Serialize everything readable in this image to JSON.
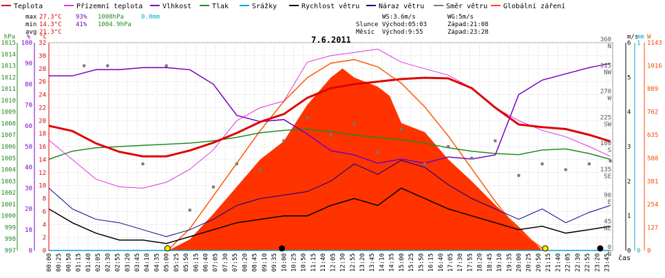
{
  "chart_data": {
    "type": "line",
    "title": "7.6.2011",
    "xlabel": "čas",
    "legend_placement": "top",
    "grid": true,
    "legend": [
      {
        "name": "Teplota",
        "color": "#e00000"
      },
      {
        "name": "Přízemní teplota",
        "color": "#dd33dd"
      },
      {
        "name": "Vlhkost",
        "color": "#7700bb"
      },
      {
        "name": "Tlak",
        "color": "#228822"
      },
      {
        "name": "Srážky",
        "color": "#00aacc"
      },
      {
        "name": "Rychlost větru",
        "color": "#000000"
      },
      {
        "name": "Náraz větru",
        "color": "#000088"
      },
      {
        "name": "Směr větru",
        "color": "#777777"
      },
      {
        "name": "Globální záření",
        "color": "#ff4400"
      }
    ],
    "stats": {
      "max": {
        "label": "max",
        "temp": "27.3°C",
        "hum": "93%",
        "press": "1008hPa",
        "rain": "0.0mm"
      },
      "min": {
        "label": "min",
        "temp": "14.3°C",
        "hum": "41%",
        "press": "1004.9hPa"
      },
      "avg": {
        "label": "avg",
        "temp": "21.3°C"
      }
    },
    "info": {
      "ws": "WS:3.6m/s",
      "wg": "WG:5m/s",
      "sun_label": "Slunce",
      "sun_rise": "Východ:05:03",
      "sun_set": "Západ:21:08",
      "moon_label": "Měsíc",
      "moon_rise": "Východ:9:55",
      "moon_set": "Západ:23:28"
    },
    "axes": {
      "hpa": {
        "unit": "hPa",
        "min": 997,
        "max": 1015,
        "ticks": [
          "997",
          "998",
          "999",
          "1000",
          "1001",
          "1002",
          "1003",
          "1004",
          "1005",
          "1006",
          "1007",
          "1008",
          "1009",
          "1010",
          "1011",
          "1012",
          "1013",
          "1014",
          "1015"
        ]
      },
      "pct": {
        "unit": "%",
        "min": 0,
        "max": 100,
        "ticks": [
          "0",
          "10",
          "20",
          "30",
          "40",
          "50",
          "60",
          "70",
          "80",
          "90",
          "100"
        ]
      },
      "temp": {
        "unit": "°C",
        "min": 0,
        "max": 32,
        "ticks": [
          "0",
          "2",
          "4",
          "6",
          "8",
          "10",
          "12",
          "14",
          "16",
          "18",
          "20",
          "22",
          "24",
          "26",
          "28",
          "30",
          "32"
        ]
      },
      "wind": {
        "unit": "m/s",
        "min": 0,
        "max": 6,
        "ticks": [
          "0",
          "1",
          "2",
          "3",
          "4",
          "5",
          "6"
        ]
      },
      "rain": {
        "unit": "mm",
        "min": 0,
        "max": 1,
        "ticks": [
          "0",
          "1"
        ]
      },
      "rad": {
        "unit": "W",
        "min": 0,
        "max": 1143,
        "ticks": [
          "0",
          "127",
          "254",
          "381",
          "508",
          "635",
          "762",
          "889",
          "1016",
          "1143"
        ]
      },
      "dir": {
        "ticks": [
          {
            "deg": 0,
            "label": "0",
            "sub": "N"
          },
          {
            "deg": 45,
            "label": "45",
            "sub": "NE"
          },
          {
            "deg": 90,
            "label": "90",
            "sub": "E"
          },
          {
            "deg": 135,
            "label": "135",
            "sub": "SE"
          },
          {
            "deg": 180,
            "label": "180",
            "sub": "S"
          },
          {
            "deg": 225,
            "label": "225",
            "sub": "SW"
          },
          {
            "deg": 270,
            "label": "270",
            "sub": "W"
          },
          {
            "deg": 315,
            "label": "315",
            "sub": "NW"
          },
          {
            "deg": 360,
            "label": "360",
            "sub": "N"
          }
        ]
      }
    },
    "x_ticks": [
      "00:00",
      "00:25",
      "00:50",
      "01:15",
      "01:40",
      "02:05",
      "02:30",
      "02:55",
      "03:20",
      "03:45",
      "04:10",
      "04:35",
      "05:00",
      "05:25",
      "05:50",
      "06:15",
      "06:40",
      "07:05",
      "07:30",
      "07:55",
      "08:20",
      "08:45",
      "09:10",
      "09:35",
      "10:00",
      "10:25",
      "10:50",
      "11:15",
      "11:40",
      "12:05",
      "12:30",
      "12:55",
      "13:20",
      "13:45",
      "14:10",
      "14:35",
      "15:00",
      "15:25",
      "15:50",
      "16:15",
      "16:40",
      "17:05",
      "17:30",
      "17:55",
      "18:20",
      "18:45",
      "19:10",
      "19:35",
      "20:00",
      "20:25",
      "20:50",
      "21:15",
      "21:40",
      "22:05",
      "22:30",
      "22:55",
      "23:20",
      "23:45"
    ],
    "series": [
      {
        "name": "Teplota",
        "unit": "°C",
        "x_hours": [
          0,
          1,
          2,
          3,
          4,
          5,
          6,
          7,
          8,
          9,
          10,
          11,
          12,
          13,
          14,
          15,
          16,
          17,
          18,
          19,
          20,
          21,
          22,
          23,
          23.9
        ],
        "values": [
          19.2,
          18.4,
          16.5,
          15.2,
          14.5,
          14.5,
          15.4,
          16.6,
          18.1,
          19.8,
          21.0,
          23.5,
          25.0,
          25.6,
          26.0,
          26.4,
          26.6,
          26.5,
          25.0,
          22.0,
          19.4,
          19.0,
          18.7,
          17.8,
          16.8
        ]
      },
      {
        "name": "Přízemní teplota",
        "unit": "°C",
        "x_hours": [
          0,
          1,
          2,
          3,
          4,
          5,
          6,
          7,
          8,
          9,
          10,
          11,
          12,
          13,
          14,
          15,
          16,
          17,
          18,
          19,
          20,
          21,
          22,
          23,
          23.9
        ],
        "values": [
          17.0,
          14.0,
          11.0,
          9.8,
          9.6,
          10.5,
          12.5,
          15.5,
          20.0,
          22.0,
          23.0,
          29.0,
          30.0,
          30.5,
          31.0,
          29.0,
          28.0,
          27.0,
          25.0,
          22.0,
          20.0,
          18.5,
          17.5,
          16.0,
          14.5
        ]
      },
      {
        "name": "Vlhkost",
        "unit": "%",
        "x_hours": [
          0,
          1,
          2,
          3,
          4,
          5,
          6,
          7,
          8,
          9,
          10,
          11,
          12,
          13,
          14,
          15,
          16,
          17,
          18,
          19,
          20,
          21,
          22,
          23,
          23.9
        ],
        "values": [
          84,
          84,
          87,
          87,
          88,
          88,
          87,
          80,
          65,
          62,
          63,
          56,
          48,
          46,
          42,
          44,
          42,
          45,
          44,
          46,
          75,
          82,
          85,
          88,
          90
        ]
      },
      {
        "name": "Tlak",
        "unit": "hPa",
        "x_hours": [
          0,
          1,
          2,
          3,
          4,
          5,
          6,
          7,
          8,
          9,
          10,
          11,
          12,
          13,
          14,
          15,
          16,
          17,
          18,
          19,
          20,
          21,
          22,
          23,
          23.9
        ],
        "values": [
          1004.9,
          1005.6,
          1005.9,
          1006.0,
          1006.1,
          1006.2,
          1006.3,
          1006.5,
          1006.8,
          1007.2,
          1007.4,
          1007.5,
          1007.3,
          1007.0,
          1006.8,
          1006.6,
          1006.3,
          1005.9,
          1005.6,
          1005.4,
          1005.3,
          1005.7,
          1005.8,
          1005.4,
          1004.9
        ]
      },
      {
        "name": "Směr větru",
        "unit": "°",
        "x_hours": [
          1.5,
          2.5,
          4,
          5,
          6,
          7,
          8,
          9,
          10,
          11,
          12,
          13,
          14,
          15,
          16,
          17,
          18,
          19,
          20,
          21,
          22,
          23,
          23.9
        ],
        "values": [
          320,
          320,
          150,
          320,
          70,
          110,
          150,
          140,
          190,
          230,
          200,
          220,
          170,
          210,
          150,
          180,
          160,
          190,
          130,
          150,
          140,
          150,
          155
        ]
      },
      {
        "name": "Rychlost větru",
        "unit": "m/s",
        "x_hours": [
          0,
          1,
          2,
          3,
          4,
          5,
          6,
          7,
          8,
          9,
          10,
          11,
          12,
          13,
          14,
          15,
          16,
          17,
          18,
          19,
          20,
          21,
          22,
          23,
          23.9
        ],
        "values": [
          1.2,
          0.8,
          0.5,
          0.3,
          0.3,
          0.2,
          0.4,
          0.6,
          0.8,
          0.9,
          1.0,
          1.0,
          1.3,
          1.5,
          1.3,
          1.8,
          1.5,
          1.2,
          1.0,
          0.8,
          0.6,
          0.7,
          0.5,
          0.6,
          0.7
        ]
      },
      {
        "name": "Náraz větru",
        "unit": "m/s",
        "x_hours": [
          0,
          1,
          2,
          3,
          4,
          5,
          6,
          7,
          8,
          9,
          10,
          11,
          12,
          13,
          14,
          15,
          16,
          17,
          18,
          19,
          20,
          21,
          22,
          23,
          23.9
        ],
        "values": [
          1.8,
          1.2,
          0.9,
          0.8,
          0.6,
          0.4,
          0.6,
          0.9,
          1.3,
          1.5,
          1.6,
          1.7,
          2.0,
          2.5,
          2.2,
          2.6,
          2.4,
          1.9,
          1.5,
          1.2,
          0.9,
          1.2,
          0.8,
          1.1,
          1.3
        ]
      },
      {
        "name": "Srážky",
        "unit": "mm",
        "x_hours": [
          0,
          23.9
        ],
        "values": [
          0,
          0
        ]
      },
      {
        "name": "Globální záření",
        "unit": "W",
        "x_hours": [
          5.1,
          6,
          7,
          8,
          9,
          10,
          11,
          12,
          12.5,
          13,
          14,
          14.5,
          15,
          16,
          17,
          18,
          19,
          20,
          21
        ],
        "values": [
          0,
          60,
          200,
          350,
          500,
          600,
          800,
          950,
          1000,
          950,
          900,
          850,
          700,
          650,
          500,
          380,
          250,
          130,
          0
        ]
      }
    ],
    "clear_sky_radiation": {
      "x_hours": [
        5.05,
        6,
        7,
        8,
        9,
        10,
        11,
        12,
        13,
        14,
        15,
        16,
        17,
        18,
        19,
        20,
        21.13
      ],
      "values": [
        0,
        120,
        300,
        480,
        660,
        820,
        950,
        1030,
        1050,
        1010,
        920,
        790,
        630,
        450,
        270,
        110,
        0
      ]
    }
  }
}
